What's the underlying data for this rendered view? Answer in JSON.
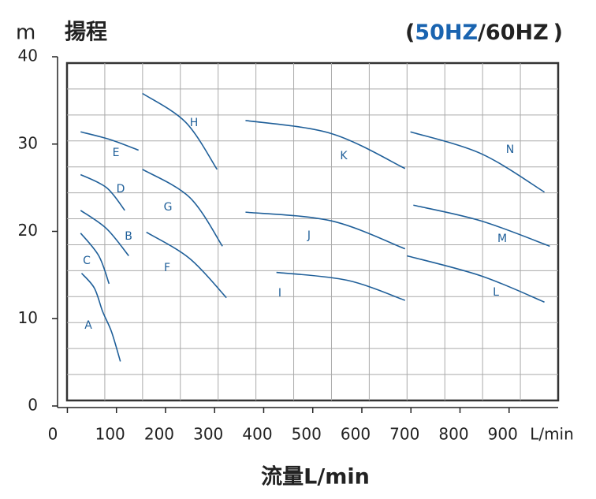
{
  "chart_data": {
    "type": "line",
    "y_unit": "m",
    "title": "揚程",
    "subtitle_parts": [
      {
        "text": "(",
        "color": "#222222"
      },
      {
        "text": "50HZ",
        "color": "#1a64b0"
      },
      {
        "text": "/60HZ",
        "color": "#222222"
      },
      {
        "text": ")",
        "color": "#222222"
      }
    ],
    "x_unit": "L/min",
    "x_label": "流量L/min",
    "xlim": [
      -20,
      1000
    ],
    "xticks": [
      0,
      100,
      200,
      300,
      400,
      500,
      600,
      700,
      800,
      900
    ],
    "ylim": [
      0,
      40
    ],
    "yticks": [
      0,
      10,
      20,
      30,
      40
    ],
    "series": [
      {
        "name": "A",
        "color": "#1f5f99",
        "x": [
          29,
          55,
          72,
          90,
          108
        ],
        "values": [
          15.2,
          13.5,
          10.8,
          8.5,
          5.1
        ]
      },
      {
        "name": "B",
        "color": "#1f5f99",
        "x": [
          27,
          80,
          125
        ],
        "values": [
          22.4,
          20.3,
          17.2
        ]
      },
      {
        "name": "C",
        "color": "#1f5f99",
        "x": [
          27,
          64,
          85
        ],
        "values": [
          19.8,
          17.2,
          14
        ]
      },
      {
        "name": "D",
        "color": "#1f5f99",
        "x": [
          27,
          80,
          117
        ],
        "values": [
          26.5,
          25,
          22.4
        ]
      },
      {
        "name": "E",
        "color": "#1f5f99",
        "x": [
          27,
          88,
          145
        ],
        "values": [
          31.4,
          30.5,
          29.3
        ]
      },
      {
        "name": "F",
        "color": "#1f5f99",
        "x": [
          161,
          249,
          324
        ],
        "values": [
          19.9,
          16.9,
          12.4
        ]
      },
      {
        "name": "G",
        "color": "#1f5f99",
        "x": [
          153,
          249,
          316
        ],
        "values": [
          27.1,
          23.9,
          18.3
        ]
      },
      {
        "name": "H",
        "color": "#1f5f99",
        "x": [
          153,
          241,
          305
        ],
        "values": [
          35.8,
          32.5,
          27.1
        ]
      },
      {
        "name": "I",
        "color": "#1f5f99",
        "x": [
          426,
          570,
          688
        ],
        "values": [
          15.3,
          14.4,
          12.1
        ]
      },
      {
        "name": "J",
        "color": "#1f5f99",
        "x": [
          363,
          538,
          688
        ],
        "values": [
          22.2,
          21.2,
          18
        ]
      },
      {
        "name": "K",
        "color": "#1f5f99",
        "x": [
          363,
          538,
          688
        ],
        "values": [
          32.7,
          31.2,
          27.2
        ]
      },
      {
        "name": "L",
        "color": "#1f5f99",
        "x": [
          692,
          843,
          972
        ],
        "values": [
          17.2,
          14.9,
          11.9
        ]
      },
      {
        "name": "M",
        "color": "#1f5f99",
        "x": [
          705,
          843,
          983
        ],
        "values": [
          23,
          21.2,
          18.3
        ]
      },
      {
        "name": "N",
        "color": "#1f5f99",
        "x": [
          699,
          843,
          972
        ],
        "values": [
          31.4,
          28.9,
          24.5
        ]
      }
    ]
  }
}
